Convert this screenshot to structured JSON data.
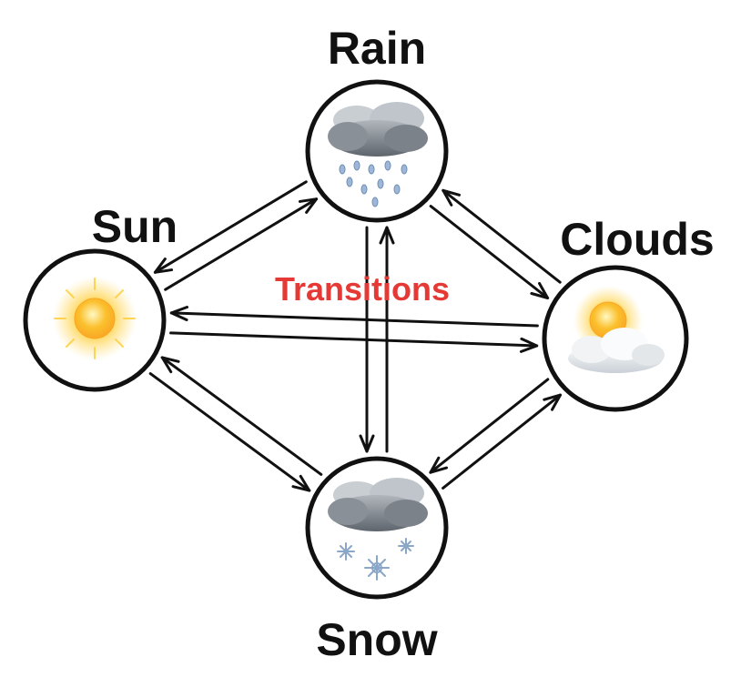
{
  "diagram": {
    "annotation": "Transitions",
    "annotation_color": "#e53935",
    "states": [
      {
        "id": "rain",
        "label": "Rain",
        "icon": "rain-cloud-icon"
      },
      {
        "id": "sun",
        "label": "Sun",
        "icon": "sun-icon"
      },
      {
        "id": "clouds",
        "label": "Clouds",
        "icon": "sun-behind-cloud-icon"
      },
      {
        "id": "snow",
        "label": "Snow",
        "icon": "snow-cloud-icon"
      }
    ],
    "transitions": [
      {
        "from": "sun",
        "to": "rain"
      },
      {
        "from": "rain",
        "to": "sun"
      },
      {
        "from": "sun",
        "to": "clouds"
      },
      {
        "from": "clouds",
        "to": "sun"
      },
      {
        "from": "sun",
        "to": "snow"
      },
      {
        "from": "snow",
        "to": "sun"
      },
      {
        "from": "rain",
        "to": "clouds"
      },
      {
        "from": "clouds",
        "to": "rain"
      },
      {
        "from": "rain",
        "to": "snow"
      },
      {
        "from": "snow",
        "to": "rain"
      },
      {
        "from": "clouds",
        "to": "snow"
      },
      {
        "from": "snow",
        "to": "clouds"
      }
    ],
    "colors": {
      "stroke": "#111111",
      "sun_core": "#f6c21c",
      "sun_glow": "#ffd54f",
      "cloud_dark": "#6f757c",
      "cloud_light": "#d8dde2",
      "precip": "#8aa6c8"
    }
  }
}
